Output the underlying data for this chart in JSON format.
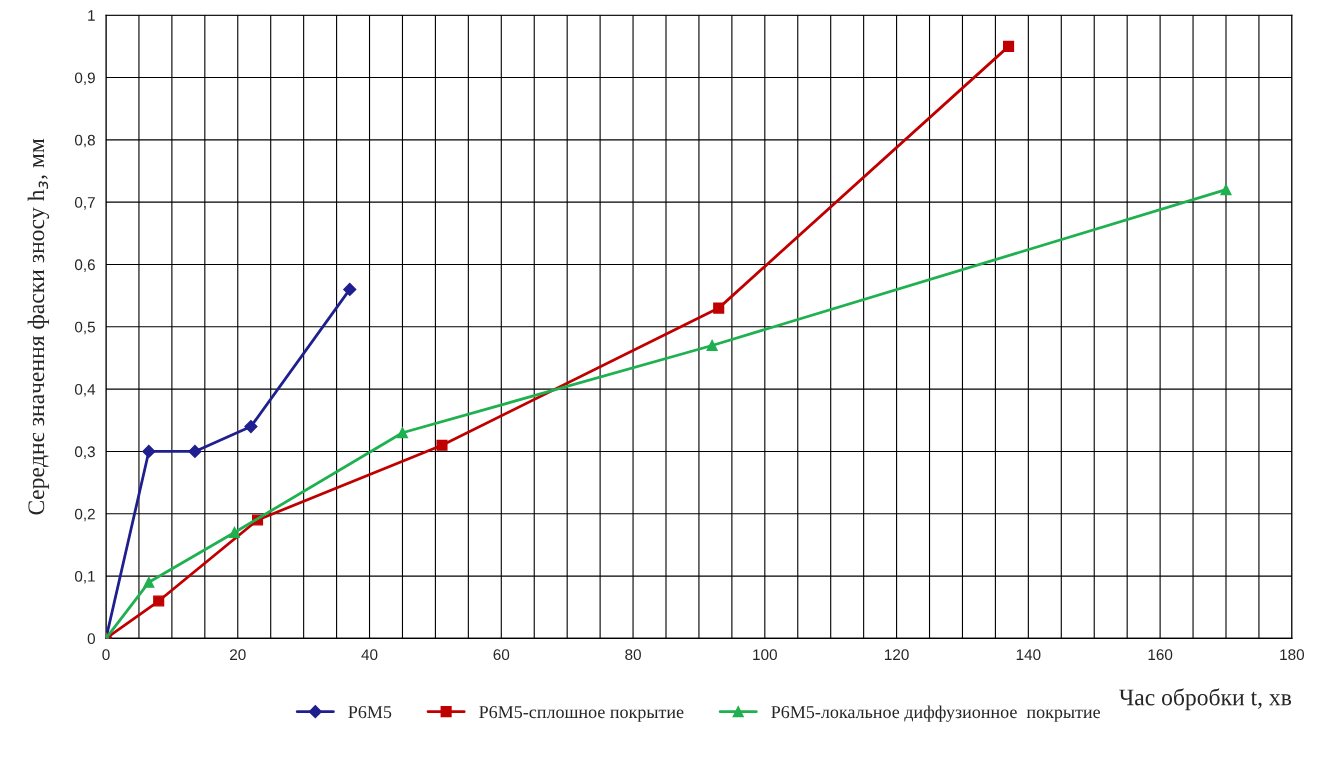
{
  "chart_data": {
    "type": "line",
    "xlabel": "Час обробки t, хв",
    "ylabel": "Середнє значення фаски зносу h$_{з}$, мм",
    "xlim": [
      0,
      180
    ],
    "xticks": [
      0,
      20,
      40,
      60,
      80,
      100,
      120,
      140,
      160,
      180
    ],
    "ylim": [
      0,
      1
    ],
    "yticks": [
      0,
      {
        "value": 0.1,
        "label": "0,1"
      },
      {
        "value": 0.2,
        "label": "0,2"
      },
      {
        "value": 0.3,
        "label": "0,3"
      },
      {
        "value": 0.4,
        "label": "0,4"
      },
      {
        "value": 0.5,
        "label": "0,5"
      },
      {
        "value": 0.6,
        "label": "0,6"
      },
      {
        "value": 0.7,
        "label": "0,7"
      },
      {
        "value": 0.8,
        "label": "0,8"
      },
      {
        "value": 0.9,
        "label": "0,9"
      },
      1
    ],
    "grid": true,
    "legend": "bottom",
    "series": [
      {
        "name": "Р6М5",
        "color": "#1f1f8f",
        "marker": "diamond",
        "x": [
          0,
          6.5,
          13.5,
          22,
          37
        ],
        "values": [
          0,
          0.3,
          0.3,
          0.34,
          0.56
        ]
      },
      {
        "name": "Р6М5-сплошное покрытие",
        "color": "#c00000",
        "marker": "square",
        "x": [
          0,
          8,
          23,
          51,
          93,
          137
        ],
        "values": [
          0,
          0.06,
          0.19,
          0.31,
          0.53,
          0.95
        ]
      },
      {
        "name": "Р6М5-локальное диффузионное  покрытие",
        "color": "#1fb050",
        "marker": "triangle",
        "x": [
          0,
          6.5,
          19.5,
          45,
          92,
          170
        ],
        "values": [
          0,
          0.09,
          0.17,
          0.33,
          0.47,
          0.72
        ]
      }
    ]
  }
}
